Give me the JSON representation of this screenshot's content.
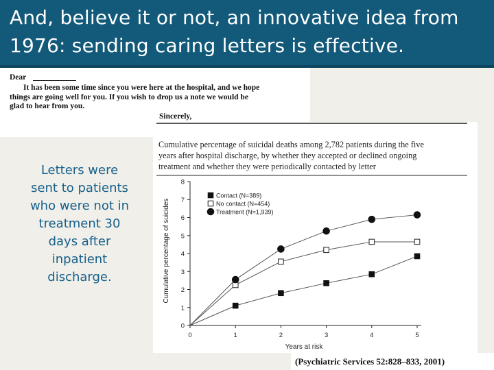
{
  "slide": {
    "title_lines": [
      "And, believe it or not, an innovative idea from",
      "1976: sending caring letters is effective."
    ],
    "left_text_lines": [
      "Letters were",
      "sent to patients",
      "who were not in",
      "treatment 30",
      "days after",
      "inpatient",
      "discharge."
    ],
    "citation": "(Psychiatric Services 52:828–833, 2001)",
    "colors": {
      "title_bg": "#135a7a",
      "body_bg": "#f0efe9",
      "left_text": "#17608a"
    }
  },
  "letter": {
    "salutation": "Dear",
    "line1": "It has been some time since you were here at the hospital, and we hope",
    "line2": "things are going well for you. If you wish to drop us a note we would be",
    "line3": "glad to hear from you.",
    "closing": "Sincerely,"
  },
  "chart_data": {
    "type": "line",
    "title_lines": [
      "Cumulative percentage of suicidal deaths among 2,782 patients during the five",
      "years after hospital discharge, by whether they accepted or declined ongoing",
      "treatment and whether they were periodically contacted by letter"
    ],
    "xlabel": "Years at risk",
    "ylabel": "Cumulative percentage of suicides",
    "x": [
      0,
      1,
      2,
      3,
      4,
      5
    ],
    "xlim": [
      0,
      5
    ],
    "ylim": [
      0,
      8
    ],
    "xticks": [
      "0",
      "1",
      "2",
      "3",
      "4",
      "5"
    ],
    "yticks": [
      "0",
      "1",
      "2",
      "3",
      "4",
      "5",
      "6",
      "7",
      "8"
    ],
    "legend_position": "top-left",
    "series": [
      {
        "name": "Contact (N=389)",
        "marker": "filled-square",
        "values": [
          0,
          1.1,
          1.8,
          2.35,
          2.85,
          3.85
        ]
      },
      {
        "name": "No contact (N=454)",
        "marker": "open-square",
        "values": [
          0,
          2.25,
          3.55,
          4.2,
          4.65,
          4.65
        ]
      },
      {
        "name": "Treatment (N=1,939)",
        "marker": "filled-circle",
        "values": [
          0,
          2.55,
          4.25,
          5.25,
          5.9,
          6.15
        ]
      }
    ]
  }
}
